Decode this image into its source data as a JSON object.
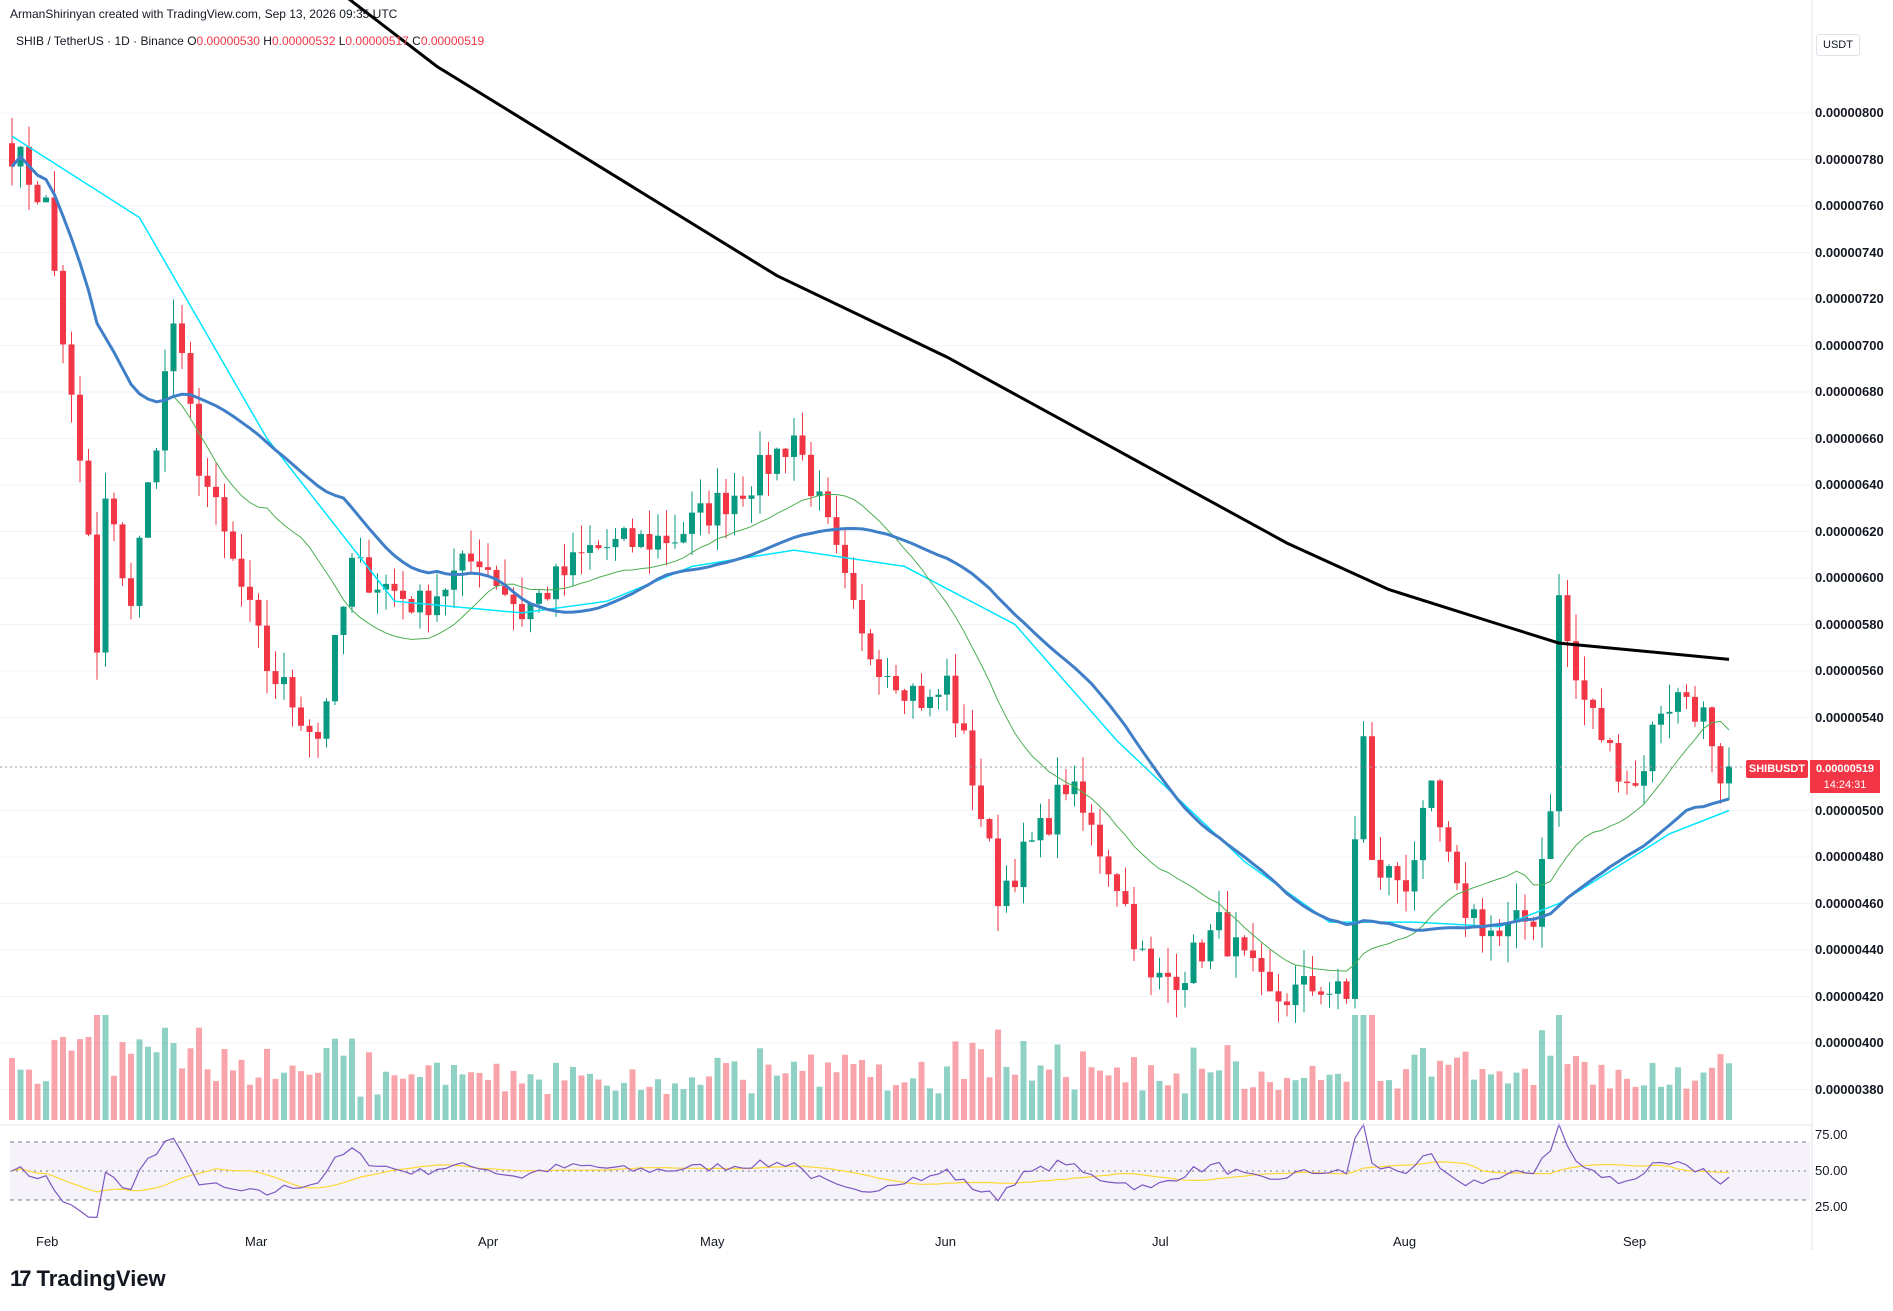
{
  "header": {
    "credit": "ArmanShirinyan created with TradingView.com, Sep 13, 2026 09:35 UTC",
    "symbol_line": "SHIB / TetherUS · 1D · Binance",
    "o_label": "O",
    "o_value": "0.00000530",
    "h_label": "H",
    "h_value": "0.00000532",
    "l_label": "L",
    "l_value": "0.00000517",
    "c_label": "C",
    "c_value": "0.00000519",
    "currency": "USDT"
  },
  "last_price": {
    "pair": "SHIBUSDT",
    "price": "0.00000519",
    "countdown": "14:24:31"
  },
  "logo": {
    "text": "TradingView",
    "mark": "17"
  },
  "colors": {
    "up": "#089981",
    "down": "#f23645",
    "sma20": "#4caf50",
    "sma50": "#3f7fc8",
    "sma100": "#00e5ff",
    "sma200": "#000000",
    "rsi": "#7e57c2",
    "rsi_ma": "#fdd835"
  },
  "chart_data": {
    "type": "candlestick",
    "y_axis": {
      "min": 3.68e-06,
      "max": 8.2e-06,
      "ticks": [
        "0.00000800",
        "0.00000780",
        "0.00000760",
        "0.00000740",
        "0.00000720",
        "0.00000700",
        "0.00000680",
        "0.00000660",
        "0.00000640",
        "0.00000620",
        "0.00000600",
        "0.00000580",
        "0.00000560",
        "0.00000540",
        "0.00000500",
        "0.00000480",
        "0.00000460",
        "0.00000440",
        "0.00000420",
        "0.00000400",
        "0.00000380"
      ]
    },
    "x_axis": {
      "labels": [
        "Feb",
        "Mar",
        "Apr",
        "May",
        "Jun",
        "Jul",
        "Aug",
        "Sep"
      ]
    },
    "rsi_axis": {
      "ticks": [
        "75.00",
        "50.00",
        "25.00"
      ],
      "upper": 70,
      "middle": 50,
      "lower": 30
    },
    "keypoints": [
      {
        "i": 0,
        "p": 7.85e-06
      },
      {
        "i": 4,
        "p": 7.6e-06
      },
      {
        "i": 9,
        "p": 6.18e-06
      },
      {
        "i": 10,
        "p": 5.65e-06
      },
      {
        "i": 11,
        "p": 6.32e-06
      },
      {
        "i": 14,
        "p": 5.9e-06
      },
      {
        "i": 19,
        "p": 7.1e-06
      },
      {
        "i": 22,
        "p": 6.5e-06
      },
      {
        "i": 30,
        "p": 5.62e-06
      },
      {
        "i": 36,
        "p": 5.32e-06
      },
      {
        "i": 40,
        "p": 6.05e-06
      },
      {
        "i": 48,
        "p": 5.88e-06
      },
      {
        "i": 55,
        "p": 6.1e-06
      },
      {
        "i": 60,
        "p": 5.85e-06
      },
      {
        "i": 68,
        "p": 6.12e-06
      },
      {
        "i": 78,
        "p": 6.18e-06
      },
      {
        "i": 88,
        "p": 6.45e-06
      },
      {
        "i": 92,
        "p": 6.62e-06
      },
      {
        "i": 96,
        "p": 6.2e-06
      },
      {
        "i": 100,
        "p": 5.72e-06
      },
      {
        "i": 108,
        "p": 5.45e-06
      },
      {
        "i": 110,
        "p": 5.55e-06
      },
      {
        "i": 113,
        "p": 5.15e-06
      },
      {
        "i": 116,
        "p": 4.65e-06
      },
      {
        "i": 121,
        "p": 4.9e-06
      },
      {
        "i": 124,
        "p": 5.12e-06
      },
      {
        "i": 130,
        "p": 4.7e-06
      },
      {
        "i": 134,
        "p": 4.25e-06
      },
      {
        "i": 138,
        "p": 4.32e-06
      },
      {
        "i": 142,
        "p": 4.5e-06
      },
      {
        "i": 148,
        "p": 4.18e-06
      },
      {
        "i": 154,
        "p": 4.25e-06
      },
      {
        "i": 157,
        "p": 4.18e-06
      },
      {
        "i": 158,
        "p": 4.9e-06
      },
      {
        "i": 159,
        "p": 5.3e-06
      },
      {
        "i": 160,
        "p": 4.75e-06
      },
      {
        "i": 164,
        "p": 4.7e-06
      },
      {
        "i": 167,
        "p": 5.05e-06
      },
      {
        "i": 170,
        "p": 4.62e-06
      },
      {
        "i": 175,
        "p": 4.45e-06
      },
      {
        "i": 179,
        "p": 4.55e-06
      },
      {
        "i": 181,
        "p": 5.05e-06
      },
      {
        "i": 182,
        "p": 5.9e-06
      },
      {
        "i": 184,
        "p": 5.55e-06
      },
      {
        "i": 188,
        "p": 5.25e-06
      },
      {
        "i": 191,
        "p": 5.1e-06
      },
      {
        "i": 194,
        "p": 5.45e-06
      },
      {
        "i": 197,
        "p": 5.5e-06
      },
      {
        "i": 199,
        "p": 5.4e-06
      },
      {
        "i": 201,
        "p": 5.05e-06
      },
      {
        "i": 202,
        "p": 5.19e-06
      }
    ],
    "sma200_points": [
      [
        0,
        9.6e-06
      ],
      [
        50,
        8.2e-06
      ],
      [
        90,
        7.3e-06
      ],
      [
        110,
        6.95e-06
      ],
      [
        130,
        6.55e-06
      ],
      [
        150,
        6.15e-06
      ],
      [
        162,
        5.95e-06
      ],
      [
        175,
        5.8e-06
      ],
      [
        182,
        5.72e-06
      ],
      [
        202,
        5.65e-06
      ]
    ],
    "sma100_points": [
      [
        0,
        7.9e-06
      ],
      [
        15,
        7.55e-06
      ],
      [
        30,
        6.6e-06
      ],
      [
        45,
        5.9e-06
      ],
      [
        60,
        5.85e-06
      ],
      [
        70,
        5.9e-06
      ],
      [
        80,
        6.05e-06
      ],
      [
        92,
        6.12e-06
      ],
      [
        105,
        6.05e-06
      ],
      [
        118,
        5.8e-06
      ],
      [
        130,
        5.3e-06
      ],
      [
        145,
        4.78e-06
      ],
      [
        155,
        4.52e-06
      ],
      [
        165,
        4.52e-06
      ],
      [
        175,
        4.5e-06
      ],
      [
        182,
        4.6e-06
      ],
      [
        195,
        4.9e-06
      ],
      [
        202,
        5e-06
      ]
    ]
  }
}
